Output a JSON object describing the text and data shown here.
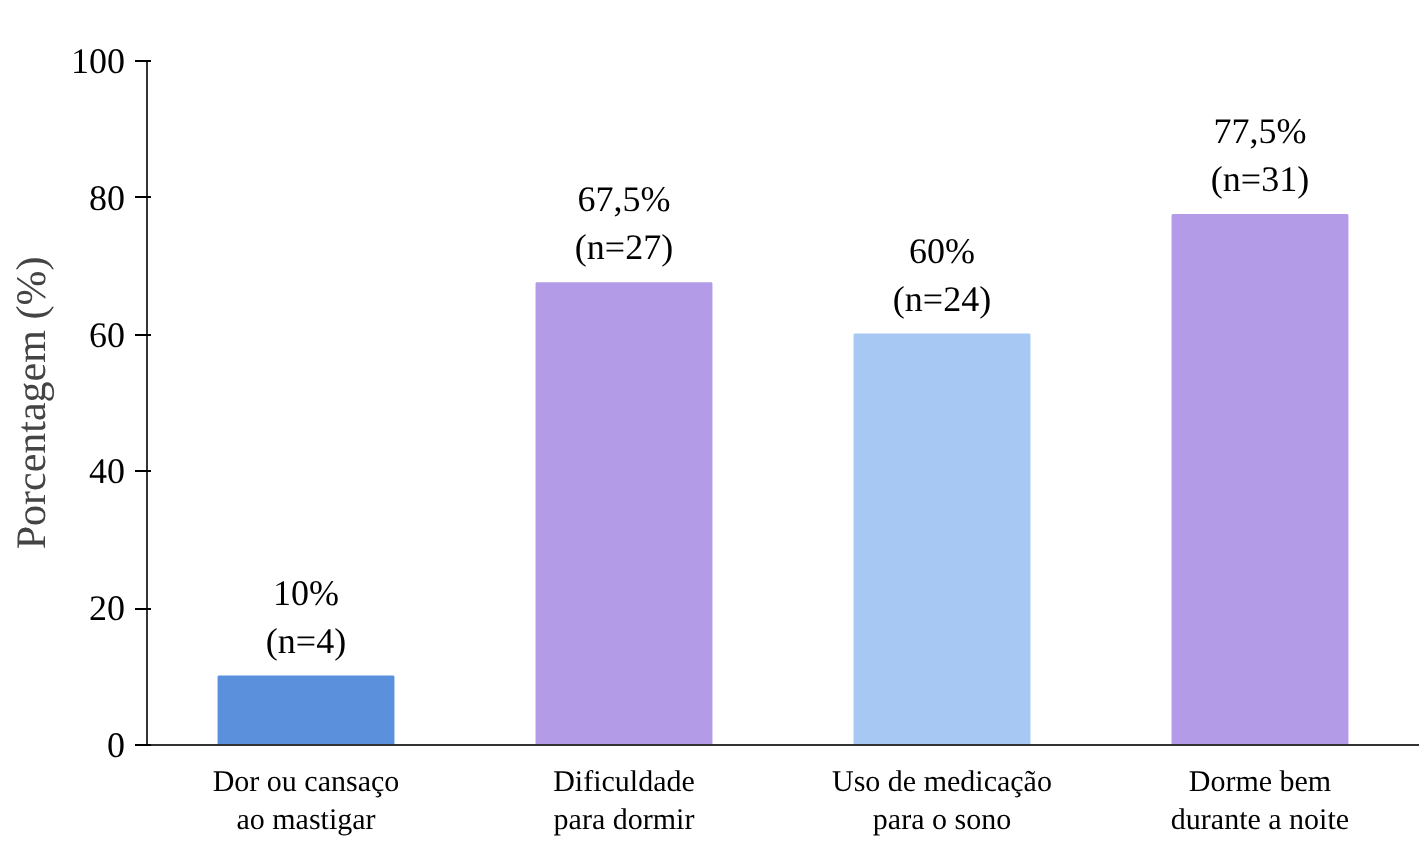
{
  "chart_data": {
    "type": "bar",
    "ylabel": "Porcentagem (%)",
    "categories": [
      "Dor ou cansaço\nao mastigar",
      "Dificuldade\npara dormir",
      "Uso de medicação\npara o sono",
      "Dorme bem\ndurante a noite"
    ],
    "values": [
      10,
      67.5,
      60,
      77.5
    ],
    "colors": [
      "#5b90dc",
      "#b39be8",
      "#a8c8f4",
      "#b39be8"
    ],
    "value_labels": [
      "10%\n(n=4)",
      "67,5%\n(n=27)",
      "60%\n(n=24)",
      "77,5%\n(n=31)"
    ],
    "ylim": [
      0,
      100
    ],
    "yticks": [
      0,
      20,
      40,
      60,
      80,
      100
    ],
    "grid": false
  }
}
